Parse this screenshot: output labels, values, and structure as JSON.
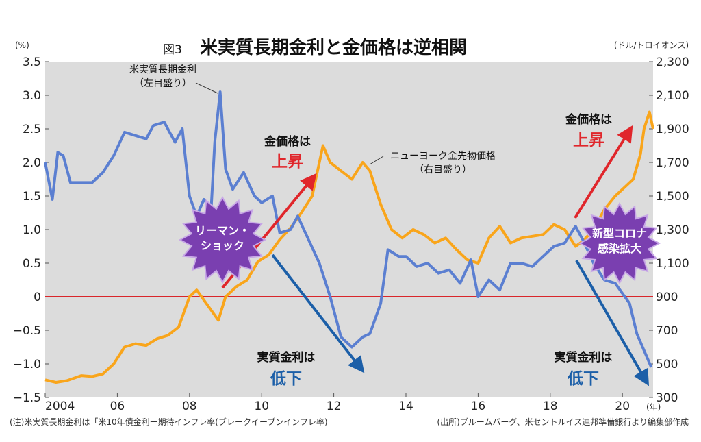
{
  "title": {
    "figure_no": "図3",
    "main": "米実質長期金利と金価格は逆相関"
  },
  "left_axis_unit": "(%)",
  "right_axis_unit": "(ドル/トロイオンス)",
  "x_unit": "(年)",
  "colors": {
    "real_rate": "#5b7fd1",
    "gold": "#f9a51b",
    "zero_line": "#d9262b",
    "red_arrow": "#e0262b",
    "blue_arrow": "#1c5fa8",
    "background_plot": "#dcdcdc"
  },
  "annotations": {
    "real_rate_label_1": "米実質長期金利",
    "real_rate_label_2": "（左目盛り）",
    "gold_label_1": "ニューヨーク金先物価格",
    "gold_label_2": "（右目盛り）",
    "up_1_top": "金価格は",
    "up_1_bottom": "上昇",
    "down_1_top": "実質金利は",
    "down_1_bottom": "低下",
    "up_2_top": "金価格は",
    "up_2_bottom": "上昇",
    "down_2_top": "実質金利は",
    "down_2_bottom": "低下",
    "burst_1_line1": "リーマン・",
    "burst_1_line2": "ショック",
    "burst_2_line1": "新型コロナ",
    "burst_2_line2": "感染拡大"
  },
  "footnotes": {
    "left": "(注)米実質長期金利は「米10年債金利ー期待インフレ率(ブレークイーブンインフレ率)",
    "right": "(出所)ブルームバーグ、米セントルイス連邦準備銀行より編集部作成"
  },
  "chart_data": {
    "type": "line",
    "title": "米実質長期金利と金価格は逆相関",
    "x_ticks": [
      "2004",
      "06",
      "08",
      "10",
      "12",
      "14",
      "16",
      "18",
      "20"
    ],
    "xlim": [
      2004,
      2020.85
    ],
    "left_ticks": [
      "3.5",
      "3.0",
      "2.5",
      "2.0",
      "1.5",
      "1.0",
      "0.5",
      "0",
      "−0.5",
      "−1.0",
      "−1.5"
    ],
    "right_ticks": [
      "2,300",
      "2,100",
      "1,900",
      "1,700",
      "1,500",
      "1,300",
      "1,100",
      "900",
      "700",
      "500",
      "300"
    ],
    "ylim_left": [
      -1.5,
      3.5
    ],
    "ylim_right": [
      300,
      2300
    ],
    "grid": false,
    "series": [
      {
        "name": "米実質長期金利",
        "axis": "left",
        "x": [
          2004.0,
          2004.2,
          2004.35,
          2004.5,
          2004.7,
          2005.0,
          2005.3,
          2005.6,
          2005.9,
          2006.2,
          2006.5,
          2006.8,
          2007.0,
          2007.3,
          2007.6,
          2007.8,
          2008.0,
          2008.2,
          2008.4,
          2008.6,
          2008.7,
          2008.85,
          2009.0,
          2009.2,
          2009.5,
          2009.8,
          2010.0,
          2010.3,
          2010.5,
          2010.8,
          2011.0,
          2011.3,
          2011.6,
          2011.9,
          2012.2,
          2012.5,
          2012.8,
          2013.0,
          2013.3,
          2013.5,
          2013.8,
          2014.0,
          2014.3,
          2014.6,
          2014.9,
          2015.2,
          2015.5,
          2015.8,
          2016.0,
          2016.3,
          2016.6,
          2016.9,
          2017.2,
          2017.5,
          2017.8,
          2018.1,
          2018.4,
          2018.7,
          2018.9,
          2019.2,
          2019.5,
          2019.8,
          2020.0,
          2020.2,
          2020.4,
          2020.6,
          2020.8
        ],
        "values": [
          2.0,
          1.45,
          2.15,
          2.1,
          1.7,
          1.7,
          1.7,
          1.85,
          2.1,
          2.45,
          2.4,
          2.35,
          2.55,
          2.6,
          2.3,
          2.5,
          1.5,
          1.2,
          1.45,
          1.3,
          2.3,
          3.05,
          1.9,
          1.6,
          1.85,
          1.5,
          1.4,
          1.5,
          0.95,
          1.0,
          1.2,
          0.85,
          0.5,
          0.0,
          -0.6,
          -0.75,
          -0.6,
          -0.55,
          -0.1,
          0.7,
          0.6,
          0.6,
          0.45,
          0.5,
          0.35,
          0.4,
          0.2,
          0.55,
          0.0,
          0.25,
          0.1,
          0.5,
          0.5,
          0.45,
          0.6,
          0.75,
          0.8,
          1.05,
          0.85,
          0.5,
          0.25,
          0.2,
          0.05,
          -0.1,
          -0.55,
          -0.8,
          -1.05
        ]
      },
      {
        "name": "ニューヨーク金先物価格",
        "axis": "right",
        "x": [
          2004.0,
          2004.3,
          2004.6,
          2005.0,
          2005.3,
          2005.6,
          2005.9,
          2006.2,
          2006.5,
          2006.8,
          2007.1,
          2007.4,
          2007.7,
          2008.0,
          2008.2,
          2008.4,
          2008.6,
          2008.8,
          2009.0,
          2009.3,
          2009.6,
          2009.9,
          2010.2,
          2010.5,
          2010.8,
          2011.1,
          2011.4,
          2011.7,
          2011.9,
          2012.2,
          2012.5,
          2012.8,
          2013.0,
          2013.3,
          2013.6,
          2013.9,
          2014.2,
          2014.5,
          2014.8,
          2015.1,
          2015.4,
          2015.7,
          2016.0,
          2016.3,
          2016.6,
          2016.9,
          2017.2,
          2017.5,
          2017.8,
          2018.1,
          2018.4,
          2018.7,
          2018.9,
          2019.2,
          2019.5,
          2019.8,
          2020.1,
          2020.3,
          2020.5,
          2020.6,
          2020.75,
          2020.85
        ],
        "values": [
          405,
          390,
          400,
          430,
          425,
          440,
          500,
          600,
          620,
          610,
          650,
          670,
          720,
          900,
          940,
          880,
          820,
          760,
          900,
          960,
          1000,
          1110,
          1150,
          1240,
          1310,
          1400,
          1500,
          1800,
          1700,
          1650,
          1600,
          1700,
          1650,
          1450,
          1300,
          1250,
          1300,
          1270,
          1220,
          1250,
          1180,
          1120,
          1100,
          1250,
          1320,
          1220,
          1250,
          1260,
          1270,
          1330,
          1300,
          1200,
          1230,
          1300,
          1420,
          1500,
          1560,
          1600,
          1750,
          1900,
          2000,
          1900
        ]
      }
    ]
  }
}
